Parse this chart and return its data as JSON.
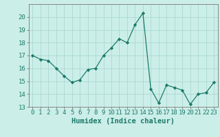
{
  "x": [
    0,
    1,
    2,
    3,
    4,
    5,
    6,
    7,
    8,
    9,
    10,
    11,
    12,
    13,
    14,
    15,
    16,
    17,
    18,
    19,
    20,
    21,
    22,
    23
  ],
  "y": [
    17.0,
    16.7,
    16.6,
    16.0,
    15.4,
    14.9,
    15.1,
    15.9,
    16.0,
    17.0,
    17.6,
    18.3,
    18.0,
    19.4,
    20.3,
    14.4,
    13.3,
    14.7,
    14.5,
    14.3,
    13.2,
    14.0,
    14.1,
    14.9
  ],
  "line_color": "#1a7a6a",
  "marker": "D",
  "marker_size": 2.2,
  "bg_color": "#cceee8",
  "grid_color": "#aad8d2",
  "xlabel": "Humidex (Indice chaleur)",
  "ylim": [
    13,
    21
  ],
  "xlim": [
    -0.5,
    23.5
  ],
  "yticks": [
    13,
    14,
    15,
    16,
    17,
    18,
    19,
    20
  ],
  "xticks": [
    0,
    1,
    2,
    3,
    4,
    5,
    6,
    7,
    8,
    9,
    10,
    11,
    12,
    13,
    14,
    15,
    16,
    17,
    18,
    19,
    20,
    21,
    22,
    23
  ],
  "xlabel_fontsize": 7.5,
  "tick_fontsize": 6.5,
  "linewidth": 0.9
}
